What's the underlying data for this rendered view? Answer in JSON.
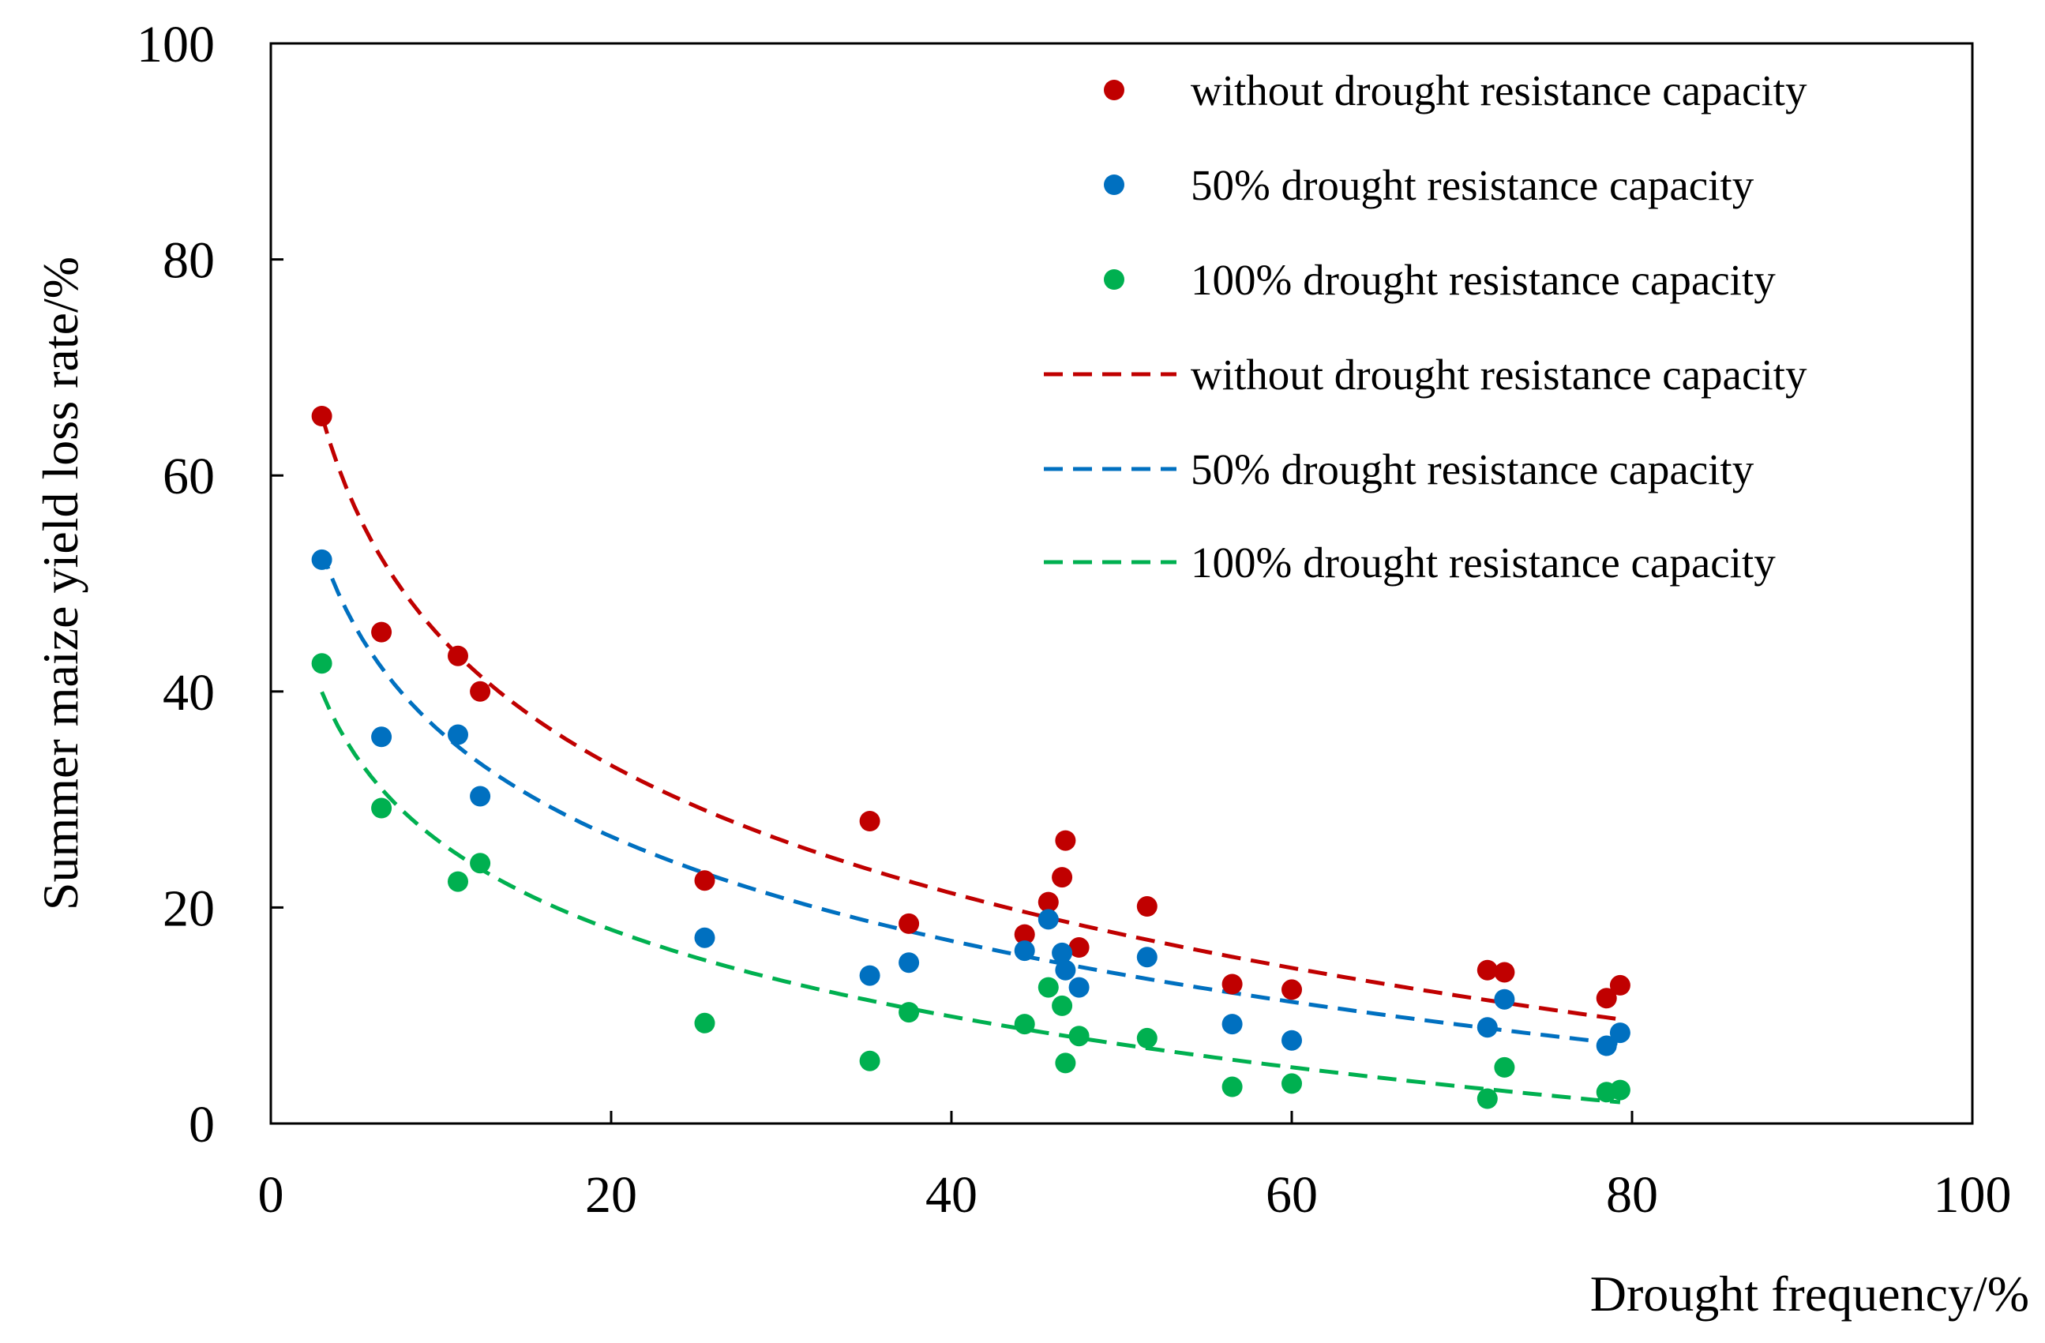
{
  "chart_data": {
    "type": "scatter",
    "title": "",
    "xlabel": "Drought frequency/%",
    "ylabel": "Summer maize yield loss rate/%",
    "xlim": [
      0,
      100
    ],
    "ylim": [
      0,
      100
    ],
    "xticks": [
      "0",
      "20",
      "40",
      "60",
      "80",
      "100"
    ],
    "yticks": [
      "0",
      "20",
      "40",
      "60",
      "80",
      "100"
    ],
    "legend_position": "top-right",
    "x": [
      3.0,
      6.5,
      11.0,
      12.3,
      25.5,
      35.2,
      37.5,
      44.3,
      45.7,
      46.5,
      46.7,
      47.5,
      51.5,
      56.5,
      60.0,
      71.5,
      72.5,
      78.5,
      79.3
    ],
    "series": [
      {
        "name": "without drought resistance capacity",
        "color": "#C00000",
        "values": [
          65.5,
          45.5,
          43.3,
          40.0,
          22.5,
          28.0,
          18.5,
          17.5,
          20.5,
          22.8,
          26.2,
          16.3,
          20.1,
          12.9,
          12.4,
          14.2,
          14.0,
          11.6,
          12.8
        ]
      },
      {
        "name": "50% drought resistance capacity",
        "color": "#0070C0",
        "values": [
          52.2,
          35.8,
          36.0,
          30.3,
          17.2,
          13.7,
          14.9,
          16.0,
          18.9,
          15.8,
          14.2,
          12.6,
          15.4,
          9.2,
          7.7,
          8.9,
          11.5,
          7.2,
          8.4
        ]
      },
      {
        "name": "100% drought resistance capacity",
        "color": "#00B050",
        "values": [
          42.6,
          29.2,
          22.4,
          24.1,
          9.3,
          5.8,
          10.3,
          9.2,
          12.6,
          10.9,
          5.6,
          8.1,
          7.9,
          3.4,
          3.7,
          2.3,
          5.2,
          2.9,
          3.1
        ]
      }
    ],
    "trendlines": [
      {
        "name": "without drought resistance capacity",
        "color": "#C00000",
        "style": "dashed",
        "model": "logarithmic",
        "a": -17.07,
        "b": 84.3,
        "x_range": [
          3.0,
          79.3
        ]
      },
      {
        "name": "50% drought resistance capacity",
        "color": "#0070C0",
        "style": "dashed",
        "model": "logarithmic",
        "a": -13.93,
        "b": 68.3,
        "x_range": [
          3.0,
          79.3
        ]
      },
      {
        "name": "100% drought resistance capacity",
        "color": "#00B050",
        "style": "dashed",
        "model": "logarithmic",
        "a": -11.6,
        "b": 52.7,
        "x_range": [
          3.0,
          79.3
        ]
      }
    ]
  }
}
